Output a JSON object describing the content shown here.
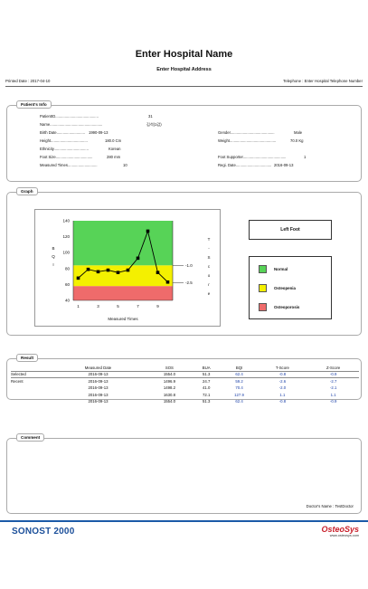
{
  "header": {
    "hospital_name": "Enter Hospital Name",
    "hospital_address": "Enter Hospital Address",
    "printed_date": "Printed Date : 2017-04-10",
    "telephone": "Telephone : Enter Hospital Telephone Number"
  },
  "patient_info": {
    "title": "Patient's Info",
    "patient_id": {
      "label": "PatientID.........................................",
      "value": "31"
    },
    "name": {
      "label": "Name..................................................",
      "value": "김석(1갑)"
    },
    "birth_date": {
      "label": "Birth Date...........................",
      "value": "1990-09-13"
    },
    "height": {
      "label": "Height...................................",
      "value": "180.0 Cm"
    },
    "ethnicity": {
      "label": "Ethnicity.................................",
      "value": "Korean"
    },
    "foot_size": {
      "label": "Foot Size...................................",
      "value": "280 mm"
    },
    "measured_times": {
      "label": "Measured Times............................",
      "value": "10"
    },
    "gender": {
      "label": "Gender..........................................",
      "value": "Male"
    },
    "weight": {
      "label": "Weight............................................",
      "value": "70.0 Kg"
    },
    "foot_supporter": {
      "label": "Foot Supporter.........................................",
      "value": "1"
    },
    "regi_date": {
      "label": "Regi. Date..................................",
      "value": "2016-09-13"
    }
  },
  "graph": {
    "title": "Graph",
    "foot_label": "Left Foot",
    "legend": [
      {
        "label": "Normal",
        "color": "#57d357"
      },
      {
        "label": "Osteopenia",
        "color": "#f4f000"
      },
      {
        "label": "Osteoporosis",
        "color": "#ef6b6b"
      }
    ]
  },
  "chart_data": {
    "type": "line",
    "xlabel": "Measured Times",
    "ylabel": "BQI",
    "y2label": "T-Score",
    "ylim": [
      40,
      140
    ],
    "y_ticks": [
      40,
      60,
      80,
      100,
      120,
      140
    ],
    "x_tick_labels": [
      "1",
      "3",
      "5",
      "7",
      "9"
    ],
    "x_tick_positions": [
      1,
      3,
      5,
      7,
      9
    ],
    "x": [
      1,
      2,
      3,
      4,
      5,
      6,
      7,
      8,
      9,
      10
    ],
    "values": [
      68,
      79,
      76,
      78,
      75,
      78,
      93,
      127,
      75,
      63
    ],
    "series_color": "#000000",
    "zones": [
      {
        "from": 40,
        "to": 58,
        "color": "#ef6b6b"
      },
      {
        "from": 58,
        "to": 84,
        "color": "#f4f000"
      },
      {
        "from": 84,
        "to": 140,
        "color": "#57d357"
      }
    ],
    "tscore_lines": [
      {
        "label": "-1.0",
        "bqi": 84
      },
      {
        "label": "-2.5",
        "bqi": 62
      }
    ]
  },
  "result": {
    "title": "Result",
    "columns": [
      "",
      "Measured Date",
      "SOS",
      "BUA",
      "BQI",
      "T-Score",
      "Z-Score"
    ],
    "rows": [
      [
        "Selected",
        "2016-09-13",
        "1554.0",
        "51.3",
        "62.4",
        "-0.8",
        "-0.9"
      ],
      [
        "Recent",
        "2016-09-13",
        "1496.9",
        "24.7",
        "59.2",
        "-2.6",
        "-2.7"
      ],
      [
        "",
        "2016-09-13",
        "1498.2",
        "41.0",
        "70.4",
        "-2.0",
        "-2.1"
      ],
      [
        "",
        "2016-09-13",
        "1630.8",
        "72.1",
        "127.9",
        "1.1",
        "1.1"
      ],
      [
        "",
        "2016-09-13",
        "1554.0",
        "51.3",
        "62.4",
        "-0.8",
        "-0.9"
      ]
    ]
  },
  "comment": {
    "title": "Comment",
    "doctor": "Doctor's Name : TestDoctor"
  },
  "footer": {
    "brand": "SONOST 2000",
    "logo": "OsteoSys",
    "url": "www.osteosys.com"
  }
}
